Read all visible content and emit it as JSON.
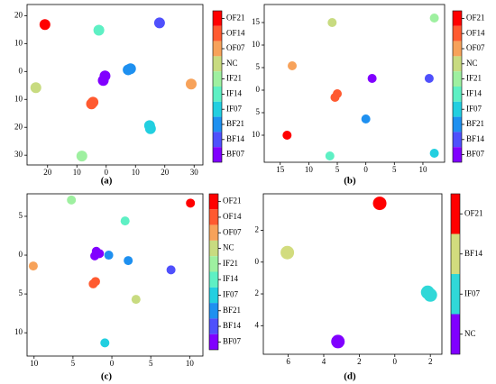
{
  "chart_data": [
    {
      "type": "scatter",
      "label": "(a)",
      "xlim": [
        -27,
        33
      ],
      "ylim": [
        -33.5,
        24
      ],
      "xticks": [
        {
          "value": -20,
          "label": "20"
        },
        {
          "value": -10,
          "label": "10"
        },
        0,
        10,
        20,
        30
      ],
      "yticks": [
        20,
        10,
        0,
        {
          "value": -10,
          "label": "10"
        },
        {
          "value": -20,
          "label": "20"
        },
        {
          "value": -30,
          "label": "30"
        }
      ],
      "series": [
        {
          "name": "OF21",
          "color": "#ff0000",
          "x": [
            -20.9
          ],
          "values": [
            16.8
          ]
        },
        {
          "name": "OF14",
          "color": "#ff5a30",
          "x": [
            -5,
            -4.5
          ],
          "values": [
            -11.6,
            -11
          ]
        },
        {
          "name": "OF07",
          "color": "#f7a25a",
          "x": [
            29
          ],
          "values": [
            -4.5
          ]
        },
        {
          "name": "NC",
          "color": "#c8db80",
          "x": [
            -24
          ],
          "values": [
            -5.8
          ]
        },
        {
          "name": "IF21",
          "color": "#9ef0a0",
          "x": [
            -8.3
          ],
          "values": [
            -30.3
          ]
        },
        {
          "name": "IF14",
          "color": "#5ef0c4",
          "x": [
            -2.5
          ],
          "values": [
            14.8
          ]
        },
        {
          "name": "IF07",
          "color": "#22cfe0",
          "x": [
            14.8,
            15.1
          ],
          "values": [
            -19.4,
            -20.5
          ]
        },
        {
          "name": "BF21",
          "color": "#1e90f0",
          "x": [
            8.3,
            7.5
          ],
          "values": [
            1,
            0.6
          ]
        },
        {
          "name": "BF14",
          "color": "#4f50fc",
          "x": [
            18.2
          ],
          "values": [
            17.4
          ]
        },
        {
          "name": "BF07",
          "color": "#8000ff",
          "x": [
            -1,
            -0.4
          ],
          "values": [
            -3.2,
            -1.6
          ]
        }
      ]
    },
    {
      "type": "scatter",
      "label": "(b)",
      "xlim": [
        -17.8,
        13.8
      ],
      "ylim": [
        -16,
        19
      ],
      "xticks": [
        {
          "value": -15,
          "label": "15"
        },
        {
          "value": -10,
          "label": "10"
        },
        {
          "value": -5,
          "label": "5"
        },
        0,
        5,
        10
      ],
      "yticks": [
        15,
        10,
        5,
        0,
        {
          "value": -5,
          "label": "5"
        },
        {
          "value": -10,
          "label": "10"
        }
      ],
      "series": [
        {
          "name": "OF21",
          "color": "#ff0000",
          "x": [
            -13.8
          ],
          "values": [
            -10
          ]
        },
        {
          "name": "OF14",
          "color": "#ff5a30",
          "x": [
            -5.4,
            -5
          ],
          "values": [
            -1.6,
            -0.8
          ]
        },
        {
          "name": "OF07",
          "color": "#f7a25a",
          "x": [
            -12.9
          ],
          "values": [
            5.4
          ]
        },
        {
          "name": "NC",
          "color": "#c8db80",
          "x": [
            -5.9
          ],
          "values": [
            15
          ]
        },
        {
          "name": "IF21",
          "color": "#9ef0a0",
          "x": [
            12
          ],
          "values": [
            16
          ]
        },
        {
          "name": "IF14",
          "color": "#5ef0c4",
          "x": [
            -6.3
          ],
          "values": [
            -14.6
          ]
        },
        {
          "name": "IF07",
          "color": "#22cfe0",
          "x": [
            12
          ],
          "values": [
            -14
          ]
        },
        {
          "name": "BF21",
          "color": "#1e90f0",
          "x": [
            0
          ],
          "values": [
            -6.4
          ]
        },
        {
          "name": "BF14",
          "color": "#4f50fc",
          "x": [
            11.1
          ],
          "values": [
            2.6
          ]
        },
        {
          "name": "BF07",
          "color": "#8000ff",
          "x": [
            1.1
          ],
          "values": [
            2.6
          ]
        }
      ]
    },
    {
      "type": "scatter",
      "label": "(c)",
      "xlim": [
        -10.9,
        11.7
      ],
      "ylim": [
        -13,
        7.9
      ],
      "xticks": [
        {
          "value": -10,
          "label": "10"
        },
        {
          "value": -5,
          "label": "5"
        },
        0,
        5,
        10
      ],
      "yticks": [
        5,
        0,
        {
          "value": -5,
          "label": "5"
        },
        {
          "value": -10,
          "label": "10"
        }
      ],
      "series": [
        {
          "name": "OF21",
          "color": "#ff0000",
          "x": [
            10.1
          ],
          "values": [
            6.7
          ]
        },
        {
          "name": "OF14",
          "color": "#ff5a30",
          "x": [
            -2.4,
            -2.1
          ],
          "values": [
            -3.7,
            -3.4
          ]
        },
        {
          "name": "OF07",
          "color": "#f7a25a",
          "x": [
            -10.1
          ],
          "values": [
            -1.4
          ]
        },
        {
          "name": "NC",
          "color": "#c8db80",
          "x": [
            3.1
          ],
          "values": [
            -5.7
          ]
        },
        {
          "name": "IF21",
          "color": "#9ef0a0",
          "x": [
            -5.2
          ],
          "values": [
            7.1
          ]
        },
        {
          "name": "IF14",
          "color": "#5ef0c4",
          "x": [
            1.7
          ],
          "values": [
            4.4
          ]
        },
        {
          "name": "IF07",
          "color": "#22cfe0",
          "x": [
            -0.9
          ],
          "values": [
            -11.3
          ]
        },
        {
          "name": "BF21",
          "color": "#1e90f0",
          "x": [
            2.1,
            -0.4
          ],
          "values": [
            -0.7,
            0
          ]
        },
        {
          "name": "BF14",
          "color": "#4f50fc",
          "x": [
            7.6
          ],
          "values": [
            -1.9
          ]
        },
        {
          "name": "BF07",
          "color": "#8000ff",
          "x": [
            -2,
            -1.6,
            -2.2
          ],
          "values": [
            0.5,
            0.2,
            -0.1
          ]
        }
      ]
    },
    {
      "type": "scatter",
      "label": "(d)",
      "xlim": [
        -7.4,
        2.65
      ],
      "ylim": [
        -5.8,
        4.3
      ],
      "xticks": [
        {
          "value": -6,
          "label": "6"
        },
        {
          "value": -4,
          "label": "4"
        },
        {
          "value": -2,
          "label": "2"
        },
        0,
        2
      ],
      "yticks": [
        2,
        0,
        {
          "value": -2,
          "label": "2"
        },
        {
          "value": -4,
          "label": "4"
        }
      ],
      "series": [
        {
          "name": "OF21",
          "color": "#ff0000",
          "x": [
            -0.85
          ],
          "values": [
            3.7
          ]
        },
        {
          "name": "BF14",
          "color": "#d2dc7e",
          "x": [
            -6.05
          ],
          "values": [
            0.6
          ]
        },
        {
          "name": "IF07",
          "color": "#30d8d8",
          "x": [
            2,
            1.85
          ],
          "values": [
            -2.07,
            -1.9
          ]
        },
        {
          "name": "NC",
          "color": "#8000ff",
          "x": [
            -3.2
          ],
          "values": [
            -5
          ]
        }
      ]
    }
  ]
}
